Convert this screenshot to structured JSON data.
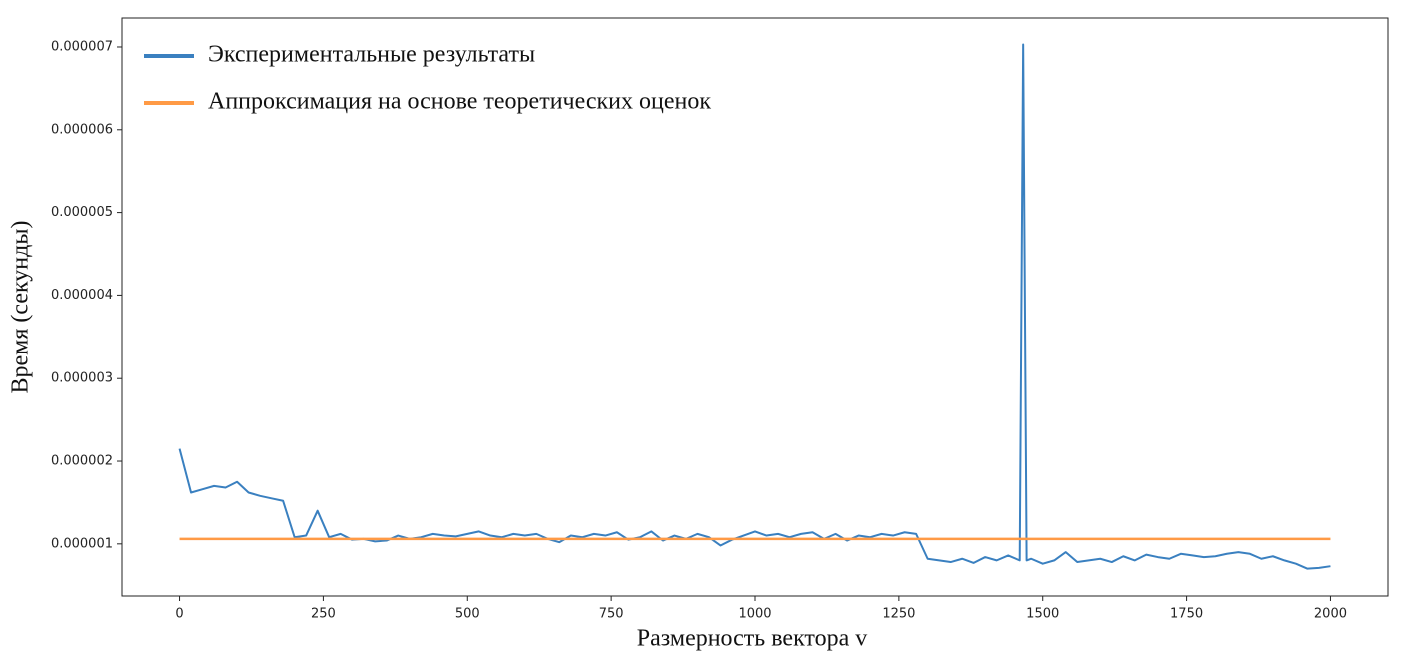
{
  "chart_data": {
    "type": "line",
    "xlabel": "Размерность вектора v",
    "ylabel": "Время (секунды)",
    "legend": "upper left",
    "xlim": [
      -100,
      2100
    ],
    "xticks": [
      0,
      250,
      500,
      750,
      1000,
      1250,
      1500,
      1750,
      2000
    ],
    "ylim": [
      3.7e-07,
      7.35e-06
    ],
    "yticks": [
      1e-06,
      2e-06,
      3e-06,
      4e-06,
      5e-06,
      6e-06,
      7e-06
    ],
    "series": [
      {
        "name": "Экспериментальные результаты",
        "color": "#3a80c0",
        "x": [
          0,
          20,
          40,
          60,
          80,
          100,
          120,
          140,
          160,
          180,
          200,
          220,
          240,
          260,
          280,
          300,
          320,
          340,
          360,
          380,
          400,
          420,
          440,
          460,
          480,
          500,
          520,
          540,
          560,
          580,
          600,
          620,
          640,
          660,
          680,
          700,
          720,
          740,
          760,
          780,
          800,
          820,
          840,
          860,
          880,
          900,
          920,
          940,
          960,
          980,
          1000,
          1020,
          1040,
          1060,
          1080,
          1100,
          1120,
          1140,
          1160,
          1180,
          1200,
          1220,
          1240,
          1260,
          1280,
          1300,
          1320,
          1340,
          1360,
          1380,
          1400,
          1420,
          1440,
          1460,
          1466,
          1472,
          1480,
          1500,
          1520,
          1540,
          1560,
          1580,
          1600,
          1620,
          1640,
          1660,
          1680,
          1700,
          1720,
          1740,
          1760,
          1780,
          1800,
          1820,
          1840,
          1860,
          1880,
          1900,
          1920,
          1940,
          1960,
          1980,
          2000
        ],
        "values": [
          2.15e-06,
          1.62e-06,
          1.66e-06,
          1.7e-06,
          1.68e-06,
          1.75e-06,
          1.62e-06,
          1.58e-06,
          1.55e-06,
          1.52e-06,
          1.08e-06,
          1.1e-06,
          1.4e-06,
          1.08e-06,
          1.12e-06,
          1.05e-06,
          1.06e-06,
          1.03e-06,
          1.04e-06,
          1.1e-06,
          1.06e-06,
          1.08e-06,
          1.12e-06,
          1.1e-06,
          1.09e-06,
          1.12e-06,
          1.15e-06,
          1.1e-06,
          1.08e-06,
          1.12e-06,
          1.1e-06,
          1.12e-06,
          1.06e-06,
          1.02e-06,
          1.1e-06,
          1.08e-06,
          1.12e-06,
          1.1e-06,
          1.14e-06,
          1.05e-06,
          1.08e-06,
          1.15e-06,
          1.04e-06,
          1.1e-06,
          1.06e-06,
          1.12e-06,
          1.08e-06,
          9.8e-07,
          1.05e-06,
          1.1e-06,
          1.15e-06,
          1.1e-06,
          1.12e-06,
          1.08e-06,
          1.12e-06,
          1.14e-06,
          1.06e-06,
          1.12e-06,
          1.04e-06,
          1.1e-06,
          1.08e-06,
          1.12e-06,
          1.1e-06,
          1.14e-06,
          1.12e-06,
          8.2e-07,
          8e-07,
          7.8e-07,
          8.2e-07,
          7.7e-07,
          8.4e-07,
          8e-07,
          8.6e-07,
          8e-07,
          7.03e-06,
          8e-07,
          8.2e-07,
          7.6e-07,
          8e-07,
          9e-07,
          7.8e-07,
          8e-07,
          8.2e-07,
          7.8e-07,
          8.5e-07,
          8e-07,
          8.7e-07,
          8.4e-07,
          8.2e-07,
          8.8e-07,
          8.6e-07,
          8.4e-07,
          8.5e-07,
          8.8e-07,
          9e-07,
          8.8e-07,
          8.2e-07,
          8.5e-07,
          8e-07,
          7.6e-07,
          7e-07,
          7.1e-07,
          7.3e-07
        ]
      },
      {
        "name": "Аппроксимация на основе теоретических оценок",
        "color": "#ff9a45",
        "x": [
          0,
          2000
        ],
        "values": [
          1.06e-06,
          1.06e-06
        ]
      }
    ]
  }
}
